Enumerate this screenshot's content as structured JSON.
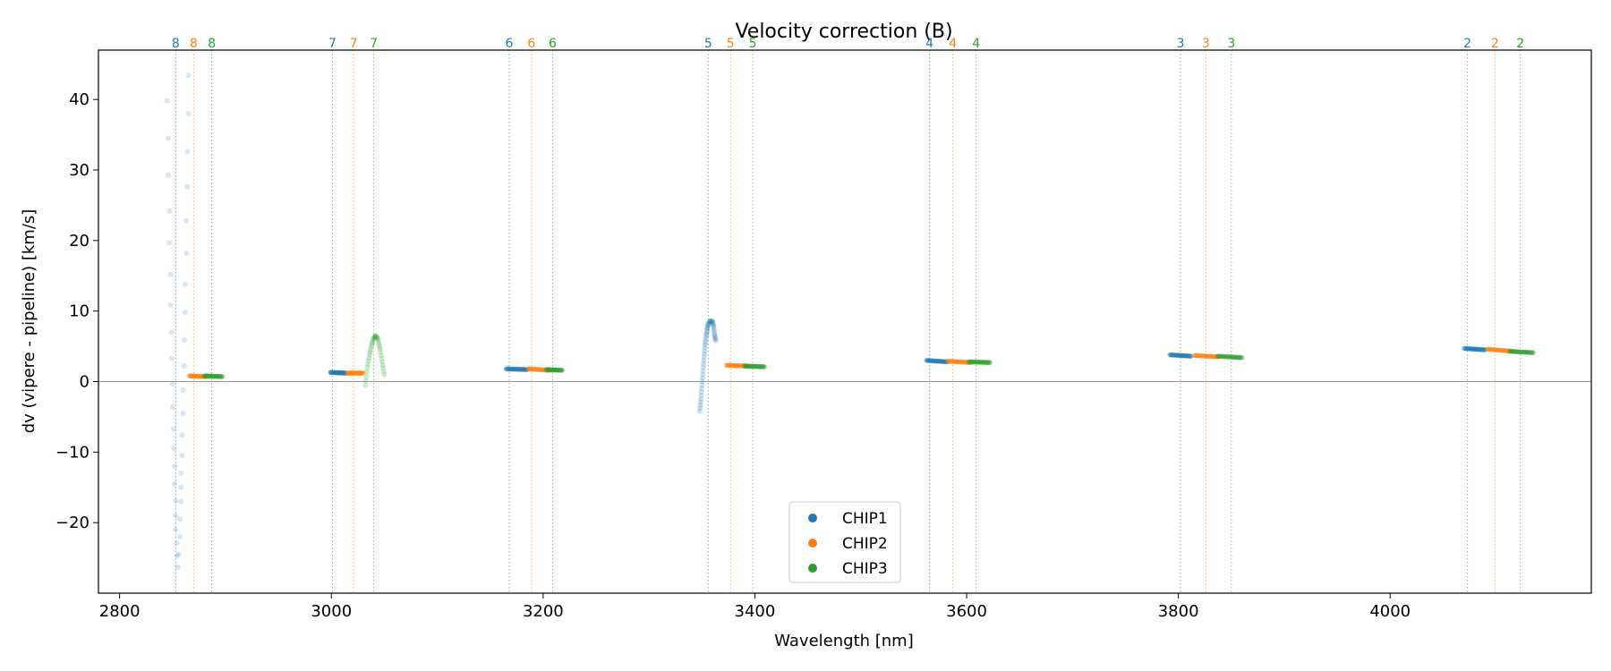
{
  "chart_data": {
    "type": "scatter",
    "title": "Velocity correction (B)",
    "xlabel": "Wavelength [nm]",
    "ylabel": "dv (vipere - pipeline) [km/s]",
    "xlim": [
      2780,
      4190
    ],
    "ylim": [
      -30,
      47
    ],
    "xticks": [
      2800,
      3000,
      3200,
      3400,
      3600,
      3800,
      4000
    ],
    "yticks": [
      -20,
      -10,
      0,
      10,
      20,
      30,
      40
    ],
    "xtick_labels": [
      "2800",
      "3000",
      "3200",
      "3400",
      "3600",
      "3800",
      "4000"
    ],
    "ytick_labels": [
      "−20",
      "−10",
      "0",
      "10",
      "20",
      "30",
      "40"
    ],
    "zero_line": 0,
    "colors": {
      "CHIP1": "#1f77b4",
      "CHIP2": "#ff7f0e",
      "CHIP3": "#2ca02c"
    },
    "legend": {
      "position": "lower center",
      "entries": [
        "CHIP1",
        "CHIP2",
        "CHIP3"
      ]
    },
    "orders": [
      {
        "order": "8",
        "CHIP1": 2853,
        "CHIP2": 2870,
        "CHIP3": 2887
      },
      {
        "order": "7",
        "CHIP1": 3001,
        "CHIP2": 3021,
        "CHIP3": 3040
      },
      {
        "order": "6",
        "CHIP1": 3168,
        "CHIP2": 3189,
        "CHIP3": 3209
      },
      {
        "order": "5",
        "CHIP1": 3356,
        "CHIP2": 3377,
        "CHIP3": 3398
      },
      {
        "order": "4",
        "CHIP1": 3565,
        "CHIP2": 3587,
        "CHIP3": 3609
      },
      {
        "order": "3",
        "CHIP1": 3802,
        "CHIP2": 3826,
        "CHIP3": 3850
      },
      {
        "order": "2",
        "CHIP1": 4073,
        "CHIP2": 4099,
        "CHIP3": 4123
      }
    ],
    "series": [
      {
        "name": "CHIP1",
        "segments": [
          {
            "kind": "scatter-faint",
            "points": [
              [
                2845,
                39.8
              ],
              [
                2846,
                34.5
              ],
              [
                2846,
                29.3
              ],
              [
                2847,
                24.2
              ],
              [
                2847,
                19.7
              ],
              [
                2848,
                15.2
              ],
              [
                2848,
                10.9
              ],
              [
                2849,
                7.0
              ],
              [
                2849,
                3.3
              ],
              [
                2850,
                -0.3
              ],
              [
                2850,
                -3.6
              ],
              [
                2851,
                -6.7
              ],
              [
                2851,
                -9.4
              ],
              [
                2852,
                -12.0
              ],
              [
                2852,
                -14.5
              ],
              [
                2853,
                -16.9
              ],
              [
                2853,
                -19.0
              ],
              [
                2853,
                -21.0
              ],
              [
                2854,
                -22.9
              ],
              [
                2854,
                -24.7
              ],
              [
                2855,
                -26.3
              ],
              [
                2856,
                -24.5
              ],
              [
                2857,
                -22.0
              ],
              [
                2857,
                -19.5
              ],
              [
                2858,
                -17.0
              ],
              [
                2858,
                -15.0
              ],
              [
                2858,
                -13.0
              ],
              [
                2859,
                -10.5
              ],
              [
                2859,
                -7.6
              ],
              [
                2860,
                -4.5
              ],
              [
                2860,
                -1.2
              ],
              [
                2861,
                2.2
              ],
              [
                2861,
                5.9
              ],
              [
                2862,
                9.8
              ],
              [
                2862,
                13.8
              ],
              [
                2863,
                18.2
              ],
              [
                2863,
                22.8
              ],
              [
                2864,
                27.6
              ],
              [
                2864,
                32.6
              ],
              [
                2865,
                38.0
              ],
              [
                2865,
                43.4
              ]
            ]
          },
          {
            "kind": "flat",
            "x_start": 2999,
            "x_end": 3014,
            "y_start": 1.3,
            "y_end": 1.2
          },
          {
            "kind": "flat",
            "x_start": 3165,
            "x_end": 3185,
            "y_start": 1.8,
            "y_end": 1.7
          },
          {
            "kind": "curve",
            "points": [
              [
                3348,
                -4.2
              ],
              [
                3349,
                -2.5
              ],
              [
                3350,
                -0.5
              ],
              [
                3351,
                1.5
              ],
              [
                3352,
                3.5
              ],
              [
                3353,
                5.2
              ],
              [
                3354,
                6.5
              ],
              [
                3355,
                7.5
              ],
              [
                3356,
                8.2
              ],
              [
                3358,
                8.6
              ],
              [
                3360,
                8.5
              ],
              [
                3361,
                7.8
              ],
              [
                3362,
                6.6
              ],
              [
                3363,
                5.8
              ]
            ]
          },
          {
            "kind": "flat",
            "x_start": 3562,
            "x_end": 3582,
            "y_start": 3.0,
            "y_end": 2.8
          },
          {
            "kind": "flat",
            "x_start": 3792,
            "x_end": 3812,
            "y_start": 3.8,
            "y_end": 3.6
          },
          {
            "kind": "flat",
            "x_start": 4070,
            "x_end": 4090,
            "y_start": 4.7,
            "y_end": 4.5
          }
        ]
      },
      {
        "name": "CHIP2",
        "segments": [
          {
            "kind": "flat",
            "x_start": 2866,
            "x_end": 2882,
            "y_start": 0.8,
            "y_end": 0.7
          },
          {
            "kind": "flat",
            "x_start": 3015,
            "x_end": 3030,
            "y_start": 1.2,
            "y_end": 1.2
          },
          {
            "kind": "flat",
            "x_start": 3186,
            "x_end": 3206,
            "y_start": 1.8,
            "y_end": 1.6
          },
          {
            "kind": "flat",
            "x_start": 3373,
            "x_end": 3393,
            "y_start": 2.3,
            "y_end": 2.2
          },
          {
            "kind": "flat",
            "x_start": 3582,
            "x_end": 3604,
            "y_start": 2.9,
            "y_end": 2.7
          },
          {
            "kind": "flat",
            "x_start": 3815,
            "x_end": 3838,
            "y_start": 3.7,
            "y_end": 3.5
          },
          {
            "kind": "flat",
            "x_start": 4092,
            "x_end": 4114,
            "y_start": 4.6,
            "y_end": 4.3
          }
        ]
      },
      {
        "name": "CHIP3",
        "segments": [
          {
            "kind": "flat",
            "x_start": 2880,
            "x_end": 2897,
            "y_start": 0.8,
            "y_end": 0.7
          },
          {
            "kind": "curve",
            "points": [
              [
                3032,
                -0.5
              ],
              [
                3034,
                2.0
              ],
              [
                3036,
                3.8
              ],
              [
                3038,
                5.2
              ],
              [
                3040,
                6.2
              ],
              [
                3042,
                6.5
              ],
              [
                3044,
                6.0
              ],
              [
                3046,
                4.6
              ],
              [
                3048,
                2.8
              ],
              [
                3050,
                1.0
              ]
            ]
          },
          {
            "kind": "flat",
            "x_start": 3203,
            "x_end": 3218,
            "y_start": 1.7,
            "y_end": 1.6
          },
          {
            "kind": "flat",
            "x_start": 3390,
            "x_end": 3409,
            "y_start": 2.2,
            "y_end": 2.1
          },
          {
            "kind": "flat",
            "x_start": 3602,
            "x_end": 3622,
            "y_start": 2.8,
            "y_end": 2.7
          },
          {
            "kind": "flat",
            "x_start": 3837,
            "x_end": 3860,
            "y_start": 3.6,
            "y_end": 3.4
          },
          {
            "kind": "flat",
            "x_start": 4113,
            "x_end": 4135,
            "y_start": 4.3,
            "y_end": 4.1
          }
        ]
      }
    ]
  }
}
